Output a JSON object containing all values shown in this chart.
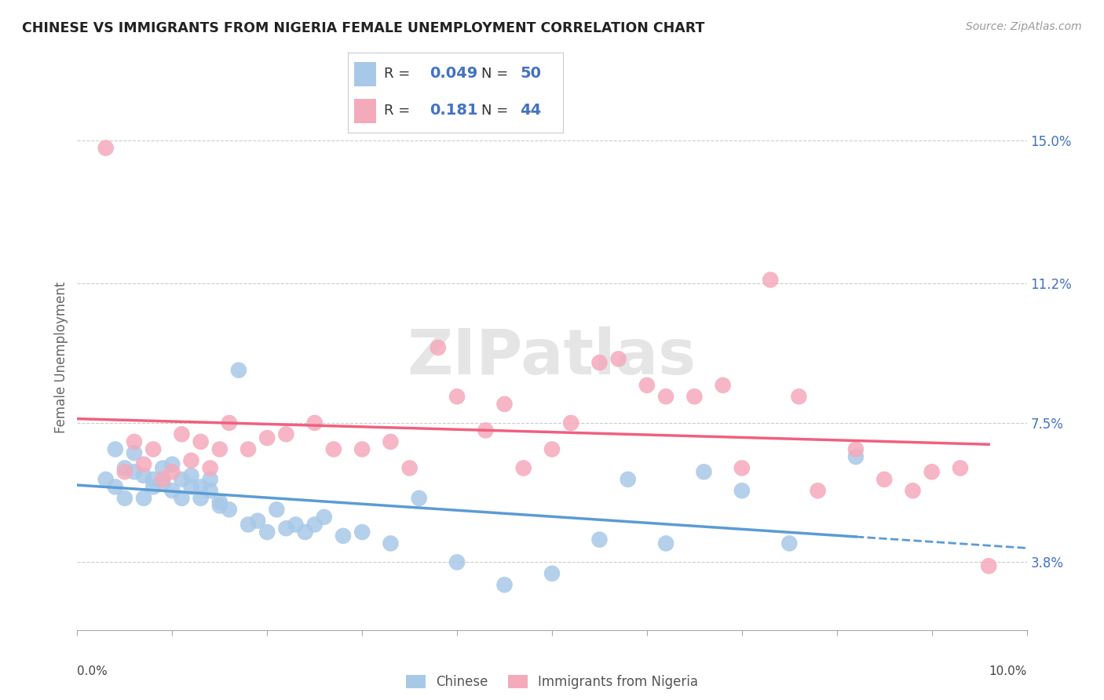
{
  "title": "CHINESE VS IMMIGRANTS FROM NIGERIA FEMALE UNEMPLOYMENT CORRELATION CHART",
  "source": "Source: ZipAtlas.com",
  "ylabel": "Female Unemployment",
  "ytick_labels": [
    "15.0%",
    "11.2%",
    "7.5%",
    "3.8%"
  ],
  "ytick_values": [
    0.15,
    0.112,
    0.075,
    0.038
  ],
  "xlim": [
    0.0,
    0.1
  ],
  "ylim": [
    0.02,
    0.165
  ],
  "legend_r_chinese": "0.049",
  "legend_n_chinese": "50",
  "legend_r_nigeria": "0.181",
  "legend_n_nigeria": "44",
  "chinese_color": "#a8c8e8",
  "nigeria_color": "#f5aabb",
  "chinese_line_color": "#5b9bd5",
  "nigeria_line_color": "#f06080",
  "watermark": "ZIPatlas",
  "chinese_scatter_x": [
    0.003,
    0.004,
    0.004,
    0.005,
    0.005,
    0.006,
    0.006,
    0.007,
    0.007,
    0.008,
    0.008,
    0.009,
    0.009,
    0.01,
    0.01,
    0.011,
    0.011,
    0.012,
    0.012,
    0.013,
    0.013,
    0.014,
    0.014,
    0.015,
    0.015,
    0.016,
    0.017,
    0.018,
    0.019,
    0.02,
    0.021,
    0.022,
    0.023,
    0.024,
    0.025,
    0.026,
    0.028,
    0.03,
    0.033,
    0.036,
    0.04,
    0.045,
    0.05,
    0.055,
    0.058,
    0.062,
    0.066,
    0.07,
    0.075,
    0.082
  ],
  "chinese_scatter_y": [
    0.06,
    0.058,
    0.068,
    0.055,
    0.063,
    0.062,
    0.067,
    0.061,
    0.055,
    0.06,
    0.058,
    0.059,
    0.063,
    0.057,
    0.064,
    0.06,
    0.055,
    0.061,
    0.058,
    0.055,
    0.058,
    0.057,
    0.06,
    0.054,
    0.053,
    0.052,
    0.089,
    0.048,
    0.049,
    0.046,
    0.052,
    0.047,
    0.048,
    0.046,
    0.048,
    0.05,
    0.045,
    0.046,
    0.043,
    0.055,
    0.038,
    0.032,
    0.035,
    0.044,
    0.06,
    0.043,
    0.062,
    0.057,
    0.043,
    0.066
  ],
  "nigeria_scatter_x": [
    0.003,
    0.005,
    0.006,
    0.007,
    0.008,
    0.009,
    0.01,
    0.011,
    0.012,
    0.013,
    0.014,
    0.015,
    0.016,
    0.018,
    0.02,
    0.022,
    0.025,
    0.027,
    0.03,
    0.033,
    0.035,
    0.038,
    0.04,
    0.043,
    0.045,
    0.047,
    0.05,
    0.052,
    0.055,
    0.057,
    0.06,
    0.062,
    0.065,
    0.068,
    0.07,
    0.073,
    0.076,
    0.078,
    0.082,
    0.085,
    0.088,
    0.09,
    0.093,
    0.096
  ],
  "nigeria_scatter_y": [
    0.148,
    0.062,
    0.07,
    0.064,
    0.068,
    0.06,
    0.062,
    0.072,
    0.065,
    0.07,
    0.063,
    0.068,
    0.075,
    0.068,
    0.071,
    0.072,
    0.075,
    0.068,
    0.068,
    0.07,
    0.063,
    0.095,
    0.082,
    0.073,
    0.08,
    0.063,
    0.068,
    0.075,
    0.091,
    0.092,
    0.085,
    0.082,
    0.082,
    0.085,
    0.063,
    0.113,
    0.082,
    0.057,
    0.068,
    0.06,
    0.057,
    0.062,
    0.063,
    0.037
  ]
}
